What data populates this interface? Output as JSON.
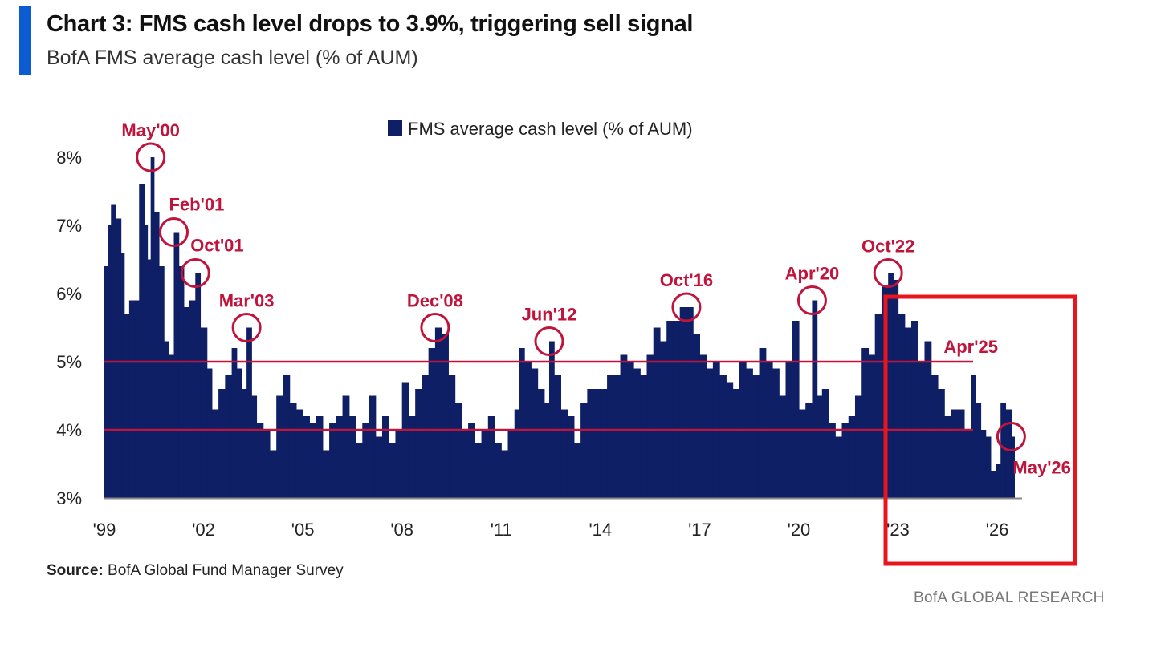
{
  "header": {
    "title": "Chart 3: FMS cash level drops to 3.9%, triggering sell signal",
    "subtitle": "BofA FMS average cash level (% of AUM)"
  },
  "footer": {
    "source_label": "Source:",
    "source_text": "BofA Global Fund Manager Survey",
    "brand": "BofA GLOBAL RESEARCH"
  },
  "colors": {
    "bar": "#0f1f66",
    "annotation": "#c0143c",
    "threshold": "#c0143c",
    "highlight_box": "#e8141e",
    "accent": "#0c5bd3"
  },
  "chart_data": {
    "type": "bar",
    "legend": {
      "label": "FMS average cash level (% of AUM)",
      "position": "top-center"
    },
    "ylim": [
      3,
      8.6
    ],
    "yticks": [
      3,
      4,
      5,
      6,
      7,
      8
    ],
    "ytick_labels": [
      "3%",
      "4%",
      "5%",
      "6%",
      "7%",
      "8%"
    ],
    "xlim": [
      1999.0,
      2027.6
    ],
    "xticks": [
      1999,
      2002,
      2005,
      2008,
      2011,
      2014,
      2017,
      2020,
      2023,
      2026
    ],
    "xtick_labels": [
      "'99",
      "'02",
      "'05",
      "'08",
      "'11",
      "'14",
      "'17",
      "'20",
      "'23",
      "'26"
    ],
    "x_end": 2026.42,
    "series": [
      {
        "values_by_year": [
          [
            1999.0,
            6.4
          ],
          [
            1999.1,
            7.0
          ],
          [
            1999.2,
            7.3
          ],
          [
            1999.35,
            7.1
          ],
          [
            1999.5,
            6.6
          ],
          [
            1999.6,
            5.7
          ],
          [
            1999.75,
            5.9
          ],
          [
            1999.9,
            5.9
          ],
          [
            2000.05,
            7.6
          ],
          [
            2000.2,
            7.0
          ],
          [
            2000.3,
            6.5
          ],
          [
            2000.4,
            8.0
          ],
          [
            2000.5,
            7.2
          ],
          [
            2000.65,
            6.4
          ],
          [
            2000.8,
            5.3
          ],
          [
            2000.95,
            5.1
          ],
          [
            2001.1,
            6.9
          ],
          [
            2001.25,
            6.4
          ],
          [
            2001.4,
            5.8
          ],
          [
            2001.55,
            5.9
          ],
          [
            2001.75,
            6.3
          ],
          [
            2001.9,
            5.5
          ],
          [
            2002.1,
            4.9
          ],
          [
            2002.25,
            4.3
          ],
          [
            2002.45,
            4.6
          ],
          [
            2002.65,
            4.8
          ],
          [
            2002.85,
            5.2
          ],
          [
            2003.0,
            4.9
          ],
          [
            2003.15,
            4.6
          ],
          [
            2003.3,
            5.5
          ],
          [
            2003.45,
            4.5
          ],
          [
            2003.6,
            4.1
          ],
          [
            2003.8,
            4.0
          ],
          [
            2004.0,
            3.7
          ],
          [
            2004.2,
            4.5
          ],
          [
            2004.4,
            4.8
          ],
          [
            2004.6,
            4.4
          ],
          [
            2004.8,
            4.3
          ],
          [
            2005.0,
            4.2
          ],
          [
            2005.2,
            4.1
          ],
          [
            2005.4,
            4.2
          ],
          [
            2005.6,
            3.7
          ],
          [
            2005.8,
            4.1
          ],
          [
            2006.0,
            4.2
          ],
          [
            2006.2,
            4.5
          ],
          [
            2006.4,
            4.2
          ],
          [
            2006.6,
            3.8
          ],
          [
            2006.8,
            4.1
          ],
          [
            2007.0,
            4.5
          ],
          [
            2007.2,
            3.9
          ],
          [
            2007.4,
            4.2
          ],
          [
            2007.6,
            3.8
          ],
          [
            2007.8,
            4.0
          ],
          [
            2008.0,
            4.7
          ],
          [
            2008.2,
            4.2
          ],
          [
            2008.4,
            4.6
          ],
          [
            2008.6,
            4.8
          ],
          [
            2008.8,
            5.2
          ],
          [
            2009.0,
            5.5
          ],
          [
            2009.2,
            5.4
          ],
          [
            2009.4,
            4.8
          ],
          [
            2009.6,
            4.4
          ],
          [
            2009.8,
            4.0
          ],
          [
            2010.0,
            4.1
          ],
          [
            2010.2,
            3.8
          ],
          [
            2010.4,
            4.0
          ],
          [
            2010.6,
            4.2
          ],
          [
            2010.8,
            3.8
          ],
          [
            2011.0,
            3.7
          ],
          [
            2011.2,
            4.0
          ],
          [
            2011.4,
            4.3
          ],
          [
            2011.55,
            5.2
          ],
          [
            2011.7,
            5.0
          ],
          [
            2011.9,
            4.9
          ],
          [
            2012.1,
            4.6
          ],
          [
            2012.3,
            4.4
          ],
          [
            2012.45,
            5.3
          ],
          [
            2012.6,
            4.8
          ],
          [
            2012.8,
            4.3
          ],
          [
            2013.0,
            4.2
          ],
          [
            2013.2,
            3.8
          ],
          [
            2013.4,
            4.4
          ],
          [
            2013.6,
            4.6
          ],
          [
            2013.8,
            4.6
          ],
          [
            2014.0,
            4.6
          ],
          [
            2014.2,
            4.8
          ],
          [
            2014.4,
            4.8
          ],
          [
            2014.6,
            5.1
          ],
          [
            2014.8,
            5.0
          ],
          [
            2015.0,
            4.9
          ],
          [
            2015.2,
            4.8
          ],
          [
            2015.4,
            5.1
          ],
          [
            2015.6,
            5.5
          ],
          [
            2015.8,
            5.3
          ],
          [
            2016.0,
            5.6
          ],
          [
            2016.2,
            5.6
          ],
          [
            2016.4,
            5.8
          ],
          [
            2016.6,
            5.8
          ],
          [
            2016.8,
            5.4
          ],
          [
            2017.0,
            5.1
          ],
          [
            2017.2,
            4.9
          ],
          [
            2017.4,
            5.0
          ],
          [
            2017.6,
            4.8
          ],
          [
            2017.8,
            4.7
          ],
          [
            2018.0,
            4.6
          ],
          [
            2018.2,
            5.0
          ],
          [
            2018.4,
            4.9
          ],
          [
            2018.6,
            4.8
          ],
          [
            2018.8,
            5.2
          ],
          [
            2019.0,
            5.0
          ],
          [
            2019.2,
            4.9
          ],
          [
            2019.4,
            4.5
          ],
          [
            2019.6,
            5.0
          ],
          [
            2019.8,
            5.6
          ],
          [
            2020.0,
            4.3
          ],
          [
            2020.2,
            4.4
          ],
          [
            2020.4,
            5.9
          ],
          [
            2020.55,
            4.5
          ],
          [
            2020.7,
            4.6
          ],
          [
            2020.9,
            4.1
          ],
          [
            2021.1,
            3.9
          ],
          [
            2021.3,
            4.1
          ],
          [
            2021.5,
            4.2
          ],
          [
            2021.7,
            4.5
          ],
          [
            2021.9,
            5.2
          ],
          [
            2022.1,
            5.1
          ],
          [
            2022.3,
            5.7
          ],
          [
            2022.5,
            6.1
          ],
          [
            2022.7,
            6.3
          ],
          [
            2022.85,
            6.2
          ],
          [
            2023.0,
            5.7
          ],
          [
            2023.2,
            5.5
          ],
          [
            2023.4,
            5.6
          ],
          [
            2023.6,
            5.0
          ],
          [
            2023.8,
            5.3
          ],
          [
            2024.0,
            4.8
          ],
          [
            2024.2,
            4.6
          ],
          [
            2024.4,
            4.2
          ],
          [
            2024.6,
            4.3
          ],
          [
            2024.8,
            4.3
          ],
          [
            2025.0,
            4.0
          ],
          [
            2025.2,
            4.8
          ],
          [
            2025.35,
            4.4
          ],
          [
            2025.5,
            4.0
          ],
          [
            2025.65,
            3.9
          ],
          [
            2025.8,
            3.4
          ],
          [
            2025.95,
            3.5
          ],
          [
            2026.1,
            4.4
          ],
          [
            2026.25,
            4.3
          ],
          [
            2026.42,
            3.9
          ]
        ]
      }
    ],
    "threshold_lines": [
      {
        "y": 5.0,
        "label": ""
      },
      {
        "y": 4.0,
        "label": ""
      }
    ],
    "annotations": [
      {
        "label": "May'00",
        "x": 2000.4,
        "y": 8.0,
        "label_side": "above"
      },
      {
        "label": "Feb'01",
        "x": 2001.1,
        "y": 6.9,
        "label_side": "above-right"
      },
      {
        "label": "Oct'01",
        "x": 2001.75,
        "y": 6.3,
        "label_side": "above-right"
      },
      {
        "label": "Mar'03",
        "x": 2003.3,
        "y": 5.5,
        "label_side": "above"
      },
      {
        "label": "Dec'08",
        "x": 2009.0,
        "y": 5.5,
        "label_side": "above"
      },
      {
        "label": "Jun'12",
        "x": 2012.45,
        "y": 5.3,
        "label_side": "above"
      },
      {
        "label": "Oct'16",
        "x": 2016.6,
        "y": 5.8,
        "label_side": "above"
      },
      {
        "label": "Apr'20",
        "x": 2020.4,
        "y": 5.9,
        "label_side": "above"
      },
      {
        "label": "Oct'22",
        "x": 2022.7,
        "y": 6.3,
        "label_side": "above"
      },
      {
        "label": "Apr'25",
        "x": 2025.2,
        "y": 4.8,
        "label_side": "above-plain"
      },
      {
        "label": "May'26",
        "x": 2026.42,
        "y": 3.9,
        "label_side": "below-right"
      }
    ],
    "highlight_region": {
      "from_year": 2023.6,
      "to_year": 2029.4,
      "label": ""
    },
    "grid": false
  }
}
